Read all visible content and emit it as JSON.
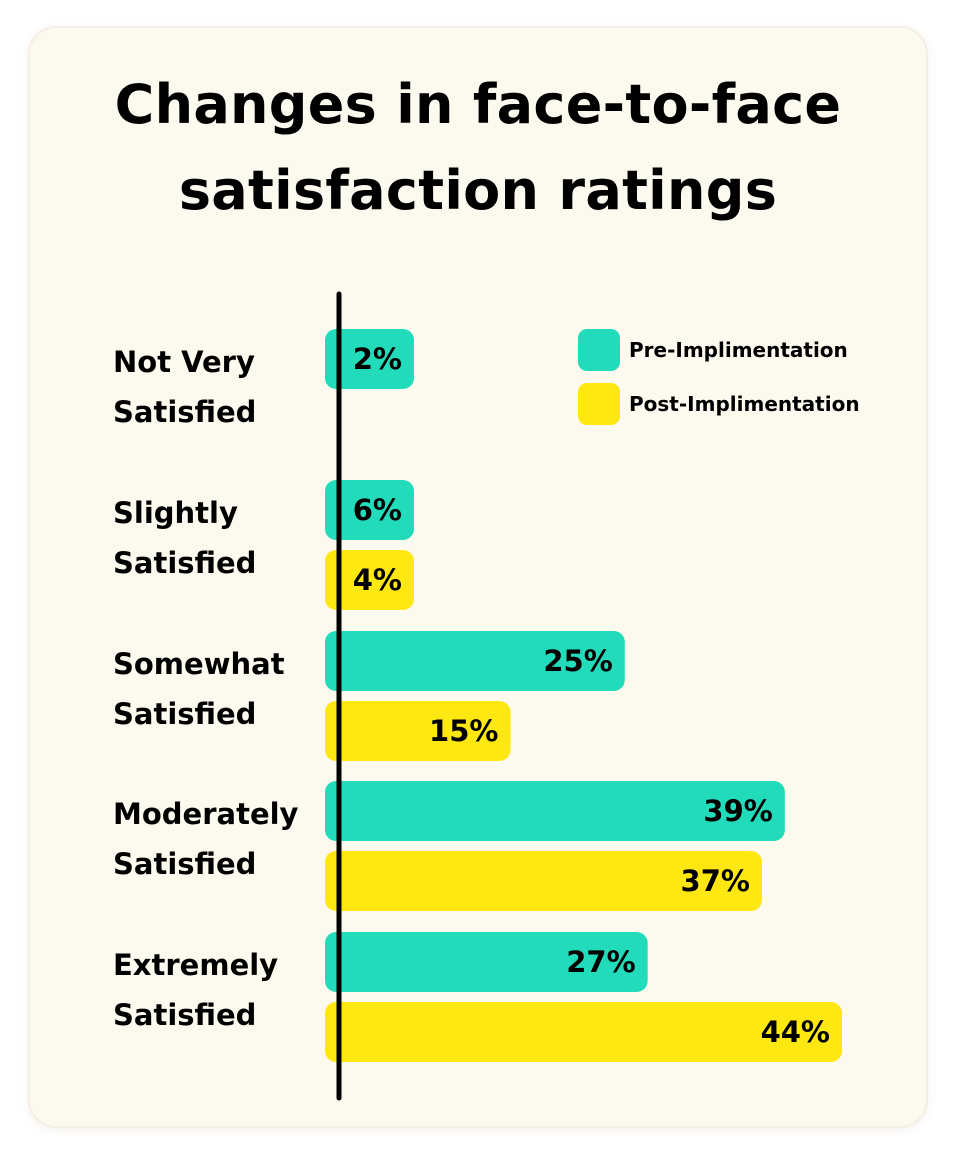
{
  "chart_data": {
    "type": "bar",
    "orientation": "horizontal",
    "title_lines": [
      "Changes in face-to-face",
      "satisfaction ratings"
    ],
    "categories": [
      [
        "Not Very",
        "Satisfied"
      ],
      [
        "Slightly",
        "Satisfied"
      ],
      [
        "Somewhat",
        "Satisfied"
      ],
      [
        "Moderately",
        "Satisfied"
      ],
      [
        "Extremely",
        "Satisfied"
      ]
    ],
    "series": [
      {
        "name": "Pre-Implimentation",
        "color": "#22dbbb",
        "values": [
          2,
          6,
          25,
          39,
          27
        ],
        "labels": [
          "2%",
          "6%",
          "25%",
          "39%",
          "27%"
        ]
      },
      {
        "name": "Post-Implimentation",
        "color": "#ffe812",
        "values": [
          null,
          4,
          15,
          37,
          44
        ],
        "labels": [
          null,
          "4%",
          "15%",
          "37%",
          "44%"
        ]
      }
    ],
    "legend_position": "top-right",
    "xlim": [
      0,
      44
    ],
    "axis_color": "#000000"
  }
}
